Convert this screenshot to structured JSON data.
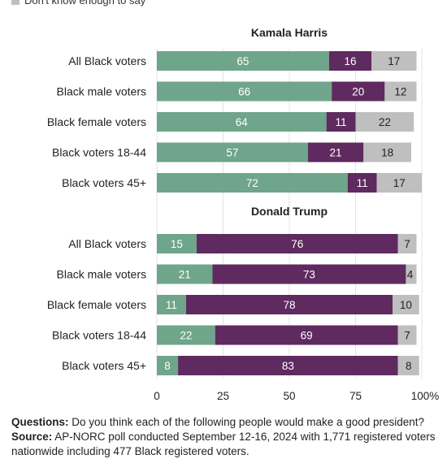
{
  "legend": [
    {
      "label": "Don't know enough to say",
      "color": "#BFBFBF"
    }
  ],
  "colors": {
    "good": "#6FA58A",
    "not_good": "#5E2A5F",
    "dont_know": "#BFBFBF"
  },
  "chart_data": [
    {
      "type": "bar",
      "orientation": "horizontal",
      "stacked": true,
      "title": "Kamala Harris",
      "categories": [
        "All Black voters",
        "Black male voters",
        "Black female voters",
        "Black voters 18-44",
        "Black voters 45+"
      ],
      "series": [
        {
          "values": [
            65,
            66,
            64,
            57,
            72
          ],
          "color": "#6FA58A"
        },
        {
          "values": [
            16,
            20,
            11,
            21,
            11
          ],
          "color": "#5E2A5F"
        },
        {
          "name": "Don't know enough to say",
          "values": [
            17,
            12,
            22,
            18,
            17
          ],
          "color": "#BFBFBF"
        }
      ]
    },
    {
      "type": "bar",
      "orientation": "horizontal",
      "stacked": true,
      "title": "Donald Trump",
      "categories": [
        "All Black voters",
        "Black male voters",
        "Black female voters",
        "Black voters 18-44",
        "Black voters 45+"
      ],
      "series": [
        {
          "values": [
            15,
            21,
            11,
            22,
            8
          ],
          "color": "#6FA58A"
        },
        {
          "values": [
            76,
            73,
            78,
            69,
            83
          ],
          "color": "#5E2A5F"
        },
        {
          "name": "Don't know enough to say",
          "values": [
            7,
            4,
            10,
            7,
            8
          ],
          "color": "#BFBFBF"
        }
      ]
    }
  ],
  "axis": {
    "xlim": [
      0,
      100
    ],
    "ticks": [
      0,
      25,
      50,
      75,
      100
    ],
    "tick_labels": [
      "0",
      "25",
      "50",
      "75",
      "100%"
    ],
    "grid": true
  },
  "footer": {
    "questions_label": "Questions:",
    "questions_text": "Do you think each of the following people would make a good president?",
    "source_label": "Source:",
    "source_text": "AP-NORC poll conducted September 12-16, 2024 with 1,771 registered voters nationwide including 477 Black registered voters."
  }
}
